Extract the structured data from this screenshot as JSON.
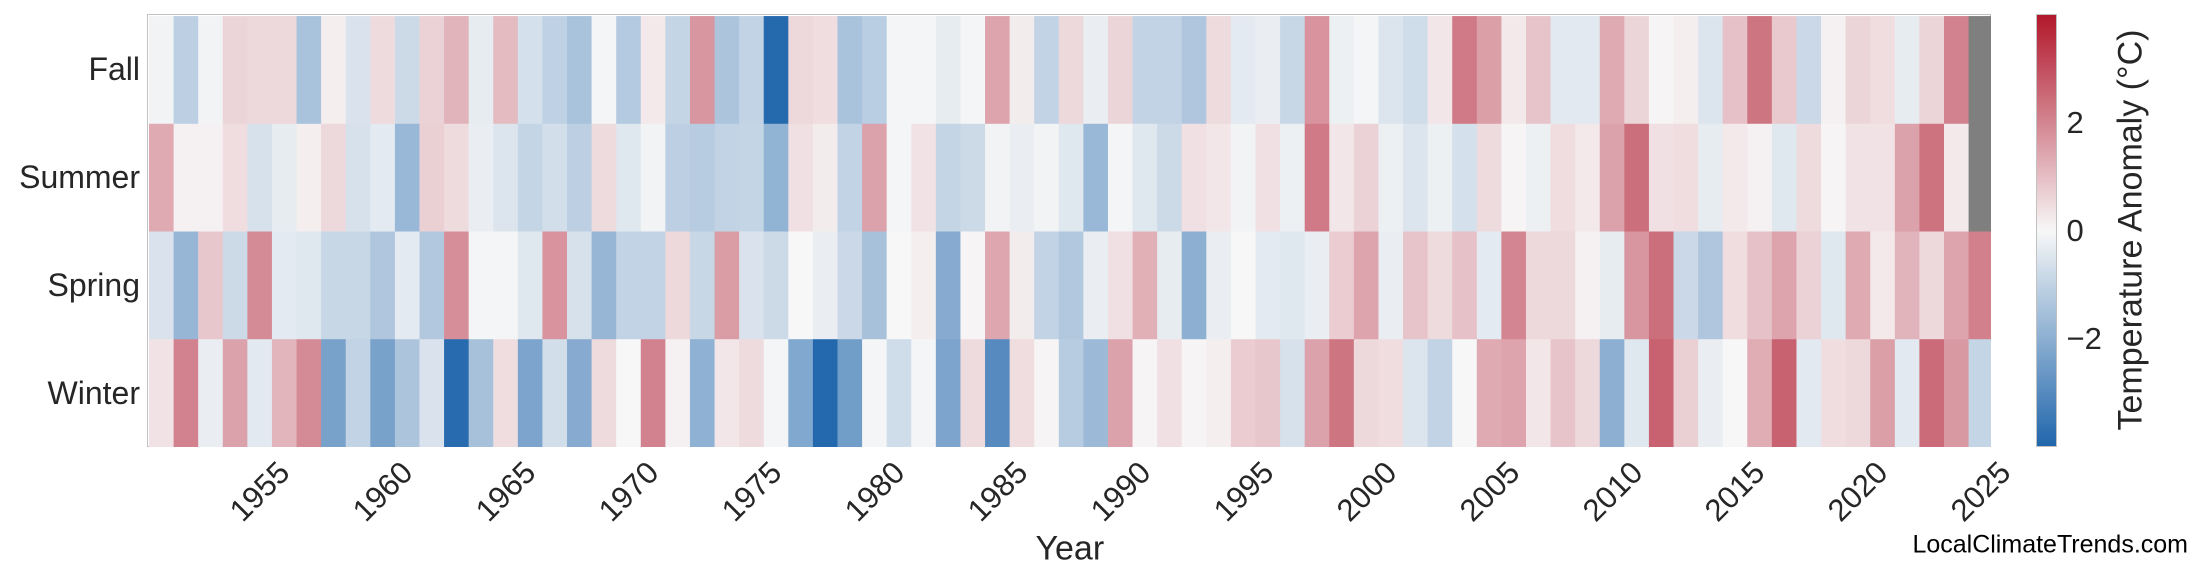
{
  "watermark": "LocalClimateTrends.com",
  "chart_data": {
    "type": "heatmap",
    "xlabel": "Year",
    "rows": [
      "Fall",
      "Summer",
      "Spring",
      "Winter"
    ],
    "years_start": 1950,
    "years_end": 2024,
    "xticks": [
      1955,
      1960,
      1965,
      1970,
      1975,
      1980,
      1985,
      1990,
      1995,
      2000,
      2005,
      2010,
      2015,
      2020,
      2025
    ],
    "vmin": -4,
    "vmax": 4,
    "colors": {
      "positive_end": "#b2182b",
      "positive_mid": "#d38591",
      "zero": "#f7f7f7",
      "negative_mid": "#8cafd2",
      "negative_end": "#2166ac",
      "missing": "#7f7f7f",
      "spine": "#c2c2c2",
      "text": "#262626"
    },
    "colorbar": {
      "label": "Temperature Anomaly (°C)",
      "ticks": [
        {
          "value": 2,
          "label": "2"
        },
        {
          "value": 0,
          "label": "0"
        },
        {
          "value": -2,
          "label": "−2"
        }
      ]
    },
    "values": {
      "Fall": [
        -0.1,
        -1.1,
        -0.1,
        0.6,
        0.55,
        0.55,
        -1.45,
        0.15,
        -0.55,
        0.5,
        -0.8,
        0.65,
        1.2,
        -0.3,
        1.05,
        -0.65,
        -1.05,
        -1.45,
        -0.05,
        -1.25,
        0.25,
        -0.95,
        1.7,
        -1.4,
        -1.0,
        -3.9,
        0.55,
        0.45,
        -1.45,
        -1.15,
        -0.05,
        -0.05,
        -0.3,
        -0.05,
        1.45,
        0.2,
        -1.0,
        0.55,
        -0.25,
        0.6,
        -1.0,
        -1.0,
        -1.35,
        0.5,
        -0.35,
        -0.25,
        -0.9,
        1.75,
        -0.2,
        -0.05,
        -0.5,
        -0.75,
        0.3,
        2.2,
        1.55,
        0.25,
        0.9,
        -0.4,
        -0.4,
        1.35,
        0.6,
        0.05,
        0.15,
        -0.5,
        0.95,
        2.3,
        0.8,
        -0.85,
        0.1,
        0.6,
        0.45,
        -0.3,
        0.6,
        2.05,
        null
      ],
      "Summer": [
        1.35,
        0.1,
        0.1,
        0.45,
        -0.6,
        -0.3,
        0.15,
        0.55,
        -0.6,
        -0.35,
        -1.75,
        0.7,
        0.5,
        -0.25,
        -0.5,
        -0.95,
        -0.7,
        -1.1,
        0.5,
        -0.45,
        -0.1,
        -1.1,
        -1.2,
        -1.0,
        -0.95,
        -1.9,
        0.4,
        0.2,
        -1.0,
        1.5,
        -0.05,
        0.35,
        -0.95,
        -0.8,
        -0.1,
        -0.25,
        -0.1,
        -0.45,
        -1.75,
        -0.05,
        -0.45,
        -0.8,
        0.4,
        0.3,
        -0.1,
        0.4,
        -0.2,
        2.2,
        0.3,
        0.65,
        -0.2,
        -0.5,
        -0.2,
        -0.65,
        0.5,
        0.05,
        -0.2,
        0.45,
        0.25,
        1.5,
        2.4,
        0.4,
        0.45,
        -0.3,
        0.25,
        0.1,
        -0.45,
        0.5,
        0.05,
        0.35,
        0.35,
        1.5,
        2.35,
        0.25,
        null
      ],
      "Spring": [
        -0.55,
        -1.8,
        0.85,
        -0.8,
        1.9,
        -0.35,
        -0.45,
        -0.9,
        -0.9,
        -1.35,
        -0.35,
        -1.3,
        1.85,
        -0.05,
        -0.05,
        -0.45,
        1.75,
        -0.6,
        -1.8,
        -1.0,
        -1.0,
        0.55,
        -0.9,
        1.6,
        -0.55,
        -0.8,
        0.0,
        -0.25,
        -0.85,
        -1.5,
        0.0,
        0.15,
        -2.1,
        0.05,
        1.4,
        0.2,
        -1.0,
        -1.3,
        -0.25,
        0.4,
        1.25,
        -0.3,
        -2.0,
        -0.25,
        0.0,
        -0.35,
        -0.45,
        -0.25,
        0.75,
        1.45,
        -0.25,
        0.9,
        0.5,
        0.95,
        -0.35,
        2.0,
        0.55,
        0.55,
        0.1,
        -0.3,
        1.7,
        2.4,
        -0.85,
        -1.35,
        0.45,
        0.95,
        1.45,
        0.65,
        -0.45,
        1.35,
        0.25,
        1.2,
        0.55,
        1.45,
        2.1
      ],
      "Winter": [
        0.35,
        2.05,
        -0.25,
        1.5,
        -0.4,
        1.15,
        1.9,
        -2.35,
        -1.0,
        -2.35,
        -1.4,
        -0.55,
        -3.85,
        -1.5,
        0.45,
        -2.3,
        -0.7,
        -2.1,
        0.5,
        0.0,
        2.05,
        0.1,
        -1.95,
        0.3,
        0.5,
        -0.05,
        -2.2,
        -3.95,
        -2.5,
        -0.05,
        -0.75,
        -0.05,
        -2.3,
        0.5,
        -3.0,
        0.45,
        0.05,
        -1.2,
        -1.7,
        1.5,
        0.05,
        0.4,
        0.05,
        0.15,
        0.75,
        0.85,
        -0.6,
        1.5,
        2.3,
        0.55,
        0.45,
        -0.5,
        -1.0,
        0.0,
        1.35,
        1.45,
        0.3,
        0.9,
        0.55,
        -2.0,
        -0.45,
        2.65,
        0.7,
        -0.25,
        0.0,
        1.3,
        2.65,
        -0.4,
        0.45,
        0.55,
        1.55,
        -0.4,
        2.5,
        1.65,
        -0.95
      ]
    }
  }
}
